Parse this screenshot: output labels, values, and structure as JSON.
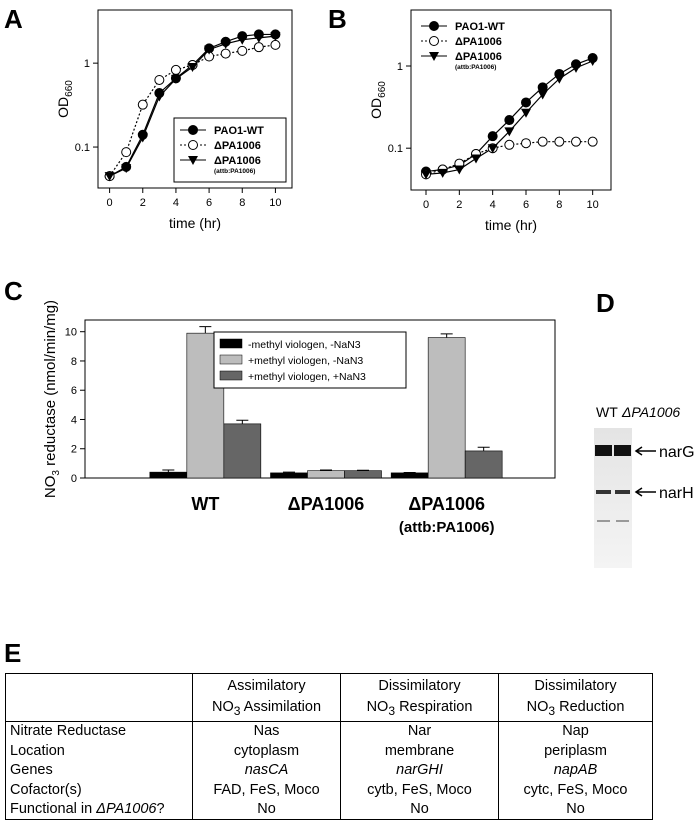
{
  "panel_labels": [
    "A",
    "B",
    "C",
    "D",
    "E"
  ],
  "chart_data": [
    {
      "type": "line",
      "xlabel": "time (hr)",
      "ylabel": "OD",
      "ylabel_sub": "660",
      "log_y": true,
      "xlim": [
        -0.7,
        11
      ],
      "ylim": [
        0.0325,
        4.3
      ],
      "xticks": [
        0,
        2,
        4,
        6,
        8,
        10
      ],
      "yticks": [
        0.1,
        1
      ],
      "legend": "lower right",
      "x": [
        0,
        1,
        2,
        3,
        4,
        5,
        6,
        7,
        8,
        9,
        10
      ],
      "series": [
        {
          "name": "PAO1-WT",
          "color": "#000000",
          "marker": "filled-circle",
          "dash": "solid",
          "values": [
            0.045,
            0.058,
            0.14,
            0.44,
            0.66,
            0.95,
            1.5,
            1.8,
            2.1,
            2.2,
            2.2
          ]
        },
        {
          "name": "ΔPA1006",
          "color": "#000000",
          "marker": "open-circle",
          "dash": "dotted",
          "values": [
            0.045,
            0.087,
            0.32,
            0.63,
            0.83,
            0.95,
            1.2,
            1.3,
            1.4,
            1.55,
            1.65
          ]
        },
        {
          "name": "ΔPA1006",
          "name_note": "(attb:PA1006)",
          "color": "#000000",
          "marker": "triangle-down",
          "dash": "solid",
          "values": [
            0.045,
            0.056,
            0.13,
            0.4,
            0.65,
            0.9,
            1.45,
            1.7,
            1.9,
            2.0,
            2.1
          ]
        }
      ]
    },
    {
      "type": "line",
      "xlabel": "time (hr)",
      "ylabel": "OD",
      "ylabel_sub": "660",
      "log_y": true,
      "xlim": [
        -0.9,
        11.1
      ],
      "ylim": [
        0.031,
        4.8
      ],
      "xticks": [
        0,
        2,
        4,
        6,
        8,
        10
      ],
      "yticks": [
        0.1,
        1
      ],
      "legend": "upper left",
      "x": [
        0,
        1,
        2,
        3,
        4,
        5,
        6,
        7,
        8,
        9,
        10
      ],
      "series": [
        {
          "name": "PAO1-WT",
          "color": "#000000",
          "marker": "filled-circle",
          "dash": "solid",
          "values": [
            0.052,
            0.055,
            0.062,
            0.085,
            0.14,
            0.22,
            0.36,
            0.55,
            0.8,
            1.05,
            1.25
          ]
        },
        {
          "name": "ΔPA1006",
          "color": "#000000",
          "marker": "open-circle",
          "dash": "dotted",
          "values": [
            0.048,
            0.055,
            0.065,
            0.085,
            0.1,
            0.11,
            0.115,
            0.12,
            0.12,
            0.12,
            0.12
          ]
        },
        {
          "name": "ΔPA1006",
          "name_note": "(attb:PA1006)",
          "color": "#000000",
          "marker": "triangle-down",
          "dash": "solid",
          "values": [
            0.048,
            0.05,
            0.055,
            0.075,
            0.1,
            0.16,
            0.27,
            0.45,
            0.7,
            0.95,
            1.15
          ]
        }
      ]
    },
    {
      "type": "bar",
      "ylabel": [
        "NO",
        "3",
        " reductase (nmol/min/mg)"
      ],
      "ylim": [
        0,
        10.8
      ],
      "yticks": [
        0,
        2,
        4,
        6,
        8,
        10
      ],
      "legend": "upper center",
      "categories": [
        "WT",
        "ΔPA1006",
        "ΔPA1006"
      ],
      "category_notes": [
        null,
        null,
        "(attb:PA1006)"
      ],
      "series": [
        {
          "name": "-methyl viologen, -NaN3",
          "color": "#000000",
          "values": [
            0.4,
            0.35,
            0.35
          ],
          "errors": [
            0.15,
            0.05,
            0.03
          ]
        },
        {
          "name": "+methyl viologen, -NaN3",
          "color": "#bdbdbd",
          "values": [
            9.9,
            0.5,
            9.6
          ],
          "errors": [
            0.45,
            0.05,
            0.25
          ]
        },
        {
          "name": "+methyl viologen, +NaN3",
          "color": "#666666",
          "values": [
            3.7,
            0.5,
            1.85
          ],
          "errors": [
            0.25,
            0.03,
            0.25
          ]
        }
      ]
    }
  ],
  "gel": {
    "lanes": [
      "WT",
      "ΔPA1006"
    ],
    "bands": [
      "narG",
      "narH"
    ]
  },
  "table": {
    "header": [
      [
        null,
        null
      ],
      [
        "Assimilatory",
        {
          "pre": "NO",
          "sub": "3",
          "post": " Assimilation"
        }
      ],
      [
        "Dissimilatory",
        {
          "pre": "NO",
          "sub": "3",
          "post": " Respiration"
        }
      ],
      [
        "Dissimilatory",
        {
          "pre": "NO",
          "sub": "3",
          "post": " Reduction"
        }
      ]
    ],
    "rows": [
      [
        "Nitrate Reductase",
        "Nas",
        "Nar",
        "Nap"
      ],
      [
        "Location",
        "cytoplasm",
        "membrane",
        "periplasm"
      ],
      [
        "Genes",
        "nasCA",
        "narGHI",
        "napAB"
      ],
      [
        "Cofactor(s)",
        "FAD, FeS, Moco",
        "cytb, FeS, Moco",
        "cytc, FeS, Moco"
      ],
      [
        {
          "pre": "Functional in ",
          "em": "ΔPA1006",
          "post": "?"
        },
        "No",
        "No",
        "No"
      ]
    ]
  }
}
